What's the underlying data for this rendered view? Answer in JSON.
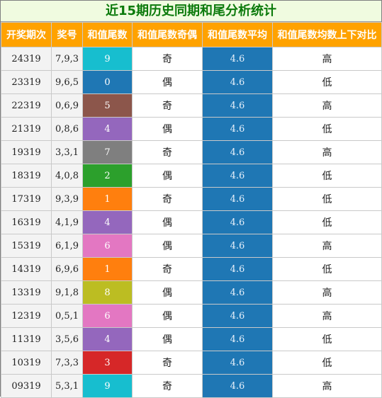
{
  "title": "近15期历史同期和尾分析统计",
  "headers": [
    "开奖期次",
    "奖号",
    "和值尾数",
    "和值尾数奇偶",
    "和值尾数平均",
    "和值尾数均数上下对比"
  ],
  "rows": [
    {
      "issue": "24319",
      "nums": "7,9,3",
      "tail": "9",
      "tail_color": "#17becf",
      "parity": "奇",
      "avg": "4.6",
      "cmp": "高"
    },
    {
      "issue": "23319",
      "nums": "9,6,5",
      "tail": "0",
      "tail_color": "#1f77b4",
      "parity": "偶",
      "avg": "4.6",
      "cmp": "低"
    },
    {
      "issue": "22319",
      "nums": "0,6,9",
      "tail": "5",
      "tail_color": "#8c564b",
      "parity": "奇",
      "avg": "4.6",
      "cmp": "高"
    },
    {
      "issue": "21319",
      "nums": "0,8,6",
      "tail": "4",
      "tail_color": "#9467bd",
      "parity": "偶",
      "avg": "4.6",
      "cmp": "低"
    },
    {
      "issue": "19319",
      "nums": "3,3,1",
      "tail": "7",
      "tail_color": "#7f7f7f",
      "parity": "奇",
      "avg": "4.6",
      "cmp": "高"
    },
    {
      "issue": "18319",
      "nums": "4,0,8",
      "tail": "2",
      "tail_color": "#2ca02c",
      "parity": "偶",
      "avg": "4.6",
      "cmp": "低"
    },
    {
      "issue": "17319",
      "nums": "9,3,9",
      "tail": "1",
      "tail_color": "#ff7f0e",
      "parity": "奇",
      "avg": "4.6",
      "cmp": "低"
    },
    {
      "issue": "16319",
      "nums": "4,1,9",
      "tail": "4",
      "tail_color": "#9467bd",
      "parity": "偶",
      "avg": "4.6",
      "cmp": "低"
    },
    {
      "issue": "15319",
      "nums": "6,1,9",
      "tail": "6",
      "tail_color": "#e377c2",
      "parity": "偶",
      "avg": "4.6",
      "cmp": "高"
    },
    {
      "issue": "14319",
      "nums": "6,9,6",
      "tail": "1",
      "tail_color": "#ff7f0e",
      "parity": "奇",
      "avg": "4.6",
      "cmp": "低"
    },
    {
      "issue": "13319",
      "nums": "9,1,8",
      "tail": "8",
      "tail_color": "#bcbd22",
      "parity": "偶",
      "avg": "4.6",
      "cmp": "高"
    },
    {
      "issue": "12319",
      "nums": "0,5,1",
      "tail": "6",
      "tail_color": "#e377c2",
      "parity": "偶",
      "avg": "4.6",
      "cmp": "高"
    },
    {
      "issue": "11319",
      "nums": "3,5,6",
      "tail": "4",
      "tail_color": "#9467bd",
      "parity": "偶",
      "avg": "4.6",
      "cmp": "低"
    },
    {
      "issue": "10319",
      "nums": "7,3,3",
      "tail": "3",
      "tail_color": "#d62728",
      "parity": "奇",
      "avg": "4.6",
      "cmp": "低"
    },
    {
      "issue": "09319",
      "nums": "5,3,1",
      "tail": "9",
      "tail_color": "#17becf",
      "parity": "奇",
      "avg": "4.6",
      "cmp": "高"
    }
  ],
  "colors": {
    "header_bg": "#ffa200",
    "title_bg": "#f0fbe0",
    "title_text": "#0b7a0b",
    "avg_bg": "#1f77b4",
    "light_gray": "#f3f3f3"
  }
}
